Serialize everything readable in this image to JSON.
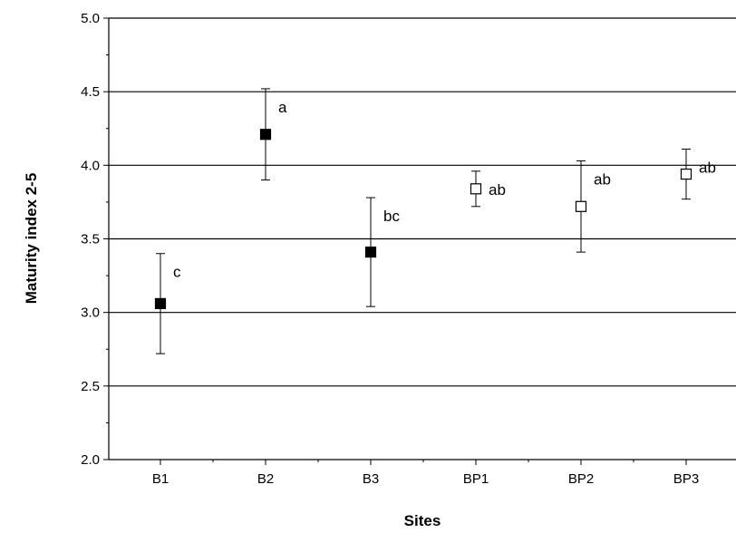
{
  "chart_data": {
    "type": "scatter",
    "xlabel": "Sites",
    "ylabel": "Maturity index 2-5",
    "ylim": [
      2.0,
      5.0
    ],
    "yticks": [
      "2.0",
      "2.5",
      "3.0",
      "3.5",
      "4.0",
      "4.5",
      "5.0"
    ],
    "grid": "horizontal",
    "categories": [
      "B1",
      "B2",
      "B3",
      "BP1",
      "BP2",
      "BP3"
    ],
    "points": [
      {
        "site": "B1",
        "mean": 3.06,
        "lower": 2.72,
        "upper": 3.4,
        "marker": "filled-square",
        "group": "c"
      },
      {
        "site": "B2",
        "mean": 4.21,
        "lower": 3.9,
        "upper": 4.52,
        "marker": "filled-square",
        "group": "a"
      },
      {
        "site": "B3",
        "mean": 3.41,
        "lower": 3.04,
        "upper": 3.78,
        "marker": "filled-square",
        "group": "bc"
      },
      {
        "site": "BP1",
        "mean": 3.84,
        "lower": 3.72,
        "upper": 3.96,
        "marker": "open-square",
        "group": "ab"
      },
      {
        "site": "BP2",
        "mean": 3.72,
        "lower": 3.41,
        "upper": 4.03,
        "marker": "open-square",
        "group": "ab"
      },
      {
        "site": "BP3",
        "mean": 3.94,
        "lower": 3.77,
        "upper": 4.11,
        "marker": "open-square",
        "group": "ab"
      }
    ]
  }
}
